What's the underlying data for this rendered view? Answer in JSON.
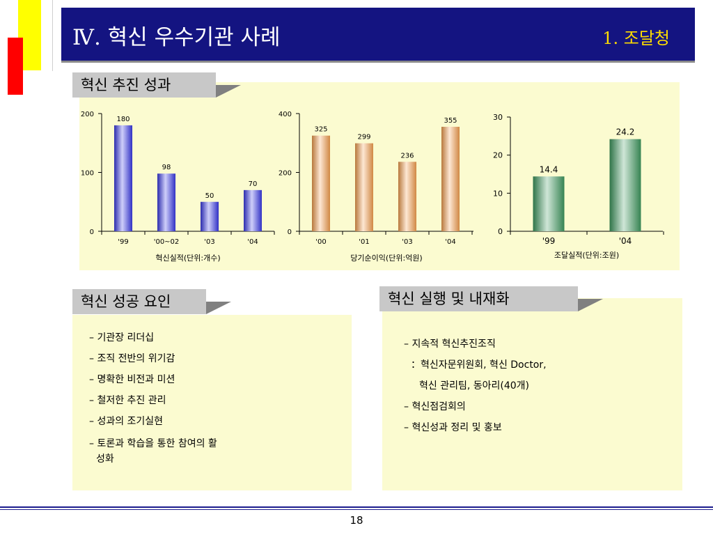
{
  "header": {
    "title": "Ⅳ. 혁신 우수기관 사례",
    "section": "1. 조달청"
  },
  "performance": {
    "label": "혁신 추진 성과"
  },
  "chart_data": [
    {
      "type": "bar",
      "categories": [
        "'99",
        "'00~02",
        "'03",
        "'04"
      ],
      "values": [
        180,
        98,
        50,
        70
      ],
      "xlabel": "혁신실적(단위:개수)",
      "ylim": [
        0,
        200
      ],
      "yticks": [
        "0",
        "100",
        "200"
      ],
      "color": "#3a3ae8",
      "grid": false
    },
    {
      "type": "bar",
      "categories": [
        "'00",
        "'01",
        "'03",
        "'04"
      ],
      "values": [
        325,
        299,
        236,
        355
      ],
      "xlabel": "당기순이익(단위:억원)",
      "ylim": [
        0,
        400
      ],
      "yticks": [
        "0",
        "200",
        "400"
      ],
      "color": "#f5a050",
      "grid": false
    },
    {
      "type": "bar",
      "categories": [
        "'99",
        "'04"
      ],
      "values": [
        14.4,
        24.2
      ],
      "value_labels": [
        "14.4",
        "24.2"
      ],
      "xlabel": "조달실적(단위:조원)",
      "ylim": [
        0,
        30
      ],
      "yticks": [
        "0",
        "10",
        "20",
        "30"
      ],
      "color": "#3f9a60",
      "grid": false
    }
  ],
  "success_factors": {
    "label": "혁신 성공 요인",
    "items": [
      "– 기관장 리더십",
      "– 조직 전반의 위기감",
      "– 명확한 비전과 미션",
      "– 철저한 추진 관리",
      "– 성과의 조기실현",
      "– 토론과 학습을 통한 참여의 활",
      "성화"
    ]
  },
  "implementation": {
    "label": "혁신 실행 및 내재화",
    "items": [
      "– 지속적 혁신추진조직",
      "：혁신자문위원회, 혁신 Doctor,",
      "혁신 관리팀, 동아리(40개)",
      "– 혁신점검회의",
      "– 혁신성과 정리 및 홍보"
    ]
  },
  "footer": {
    "page_number": "18"
  },
  "colors": {
    "header_bar": "#141481",
    "header_section_text": "#ffdd00",
    "panel": "#fbfbd0",
    "label_box": "#c8c8c8"
  }
}
